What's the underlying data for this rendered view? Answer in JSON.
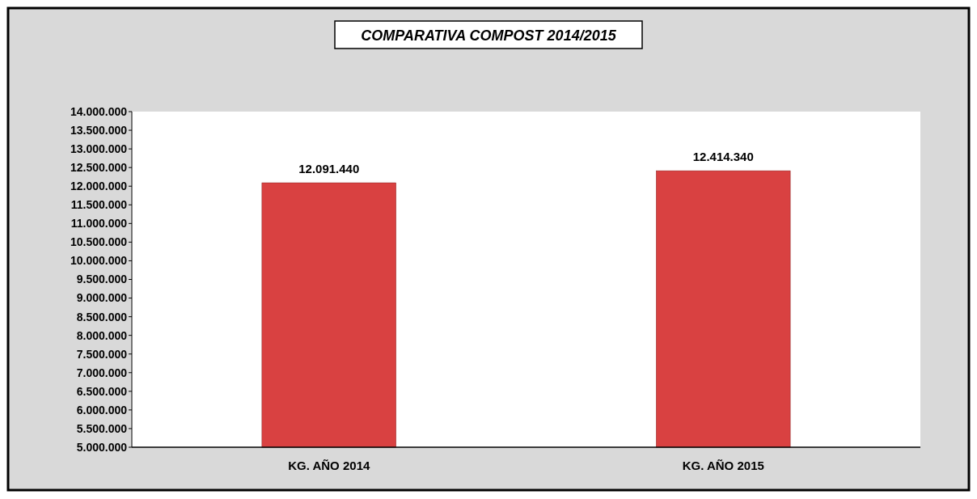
{
  "chart_data": {
    "type": "bar",
    "title": "COMPARATIVA COMPOST 2014/2015",
    "categories": [
      "KG. AÑO 2014",
      "KG. AÑO 2015"
    ],
    "values": [
      12091440,
      12414340
    ],
    "color": "#d94141",
    "ylim": [
      5000000,
      14000000
    ],
    "yticks": [
      {
        "value": 5000000,
        "label": "5.000.000"
      },
      {
        "value": 5500000,
        "label": "5.500.000"
      },
      {
        "value": 6000000,
        "label": "6.000.000"
      },
      {
        "value": 6500000,
        "label": "6.500.000"
      },
      {
        "value": 7000000,
        "label": "7.000.000"
      },
      {
        "value": 7500000,
        "label": "7.500.000"
      },
      {
        "value": 8000000,
        "label": "8.000.000"
      },
      {
        "value": 8500000,
        "label": "8.500.000"
      },
      {
        "value": 9000000,
        "label": "9.000.000"
      },
      {
        "value": 9500000,
        "label": "9.500.000"
      },
      {
        "value": 10000000,
        "label": "10.000.000"
      },
      {
        "value": 10500000,
        "label": "10.500.000"
      },
      {
        "value": 11000000,
        "label": "11.000.000"
      },
      {
        "value": 11500000,
        "label": "11.500.000"
      },
      {
        "value": 12000000,
        "label": "12.000.000"
      },
      {
        "value": 12500000,
        "label": "12.500.000"
      },
      {
        "value": 13000000,
        "label": "13.000.000"
      },
      {
        "value": 13500000,
        "label": "13.500.000"
      },
      {
        "value": 14000000,
        "label": "14.000.000"
      }
    ],
    "value_labels": [
      "12.091.440",
      "12.414.340"
    ],
    "grid": false
  }
}
